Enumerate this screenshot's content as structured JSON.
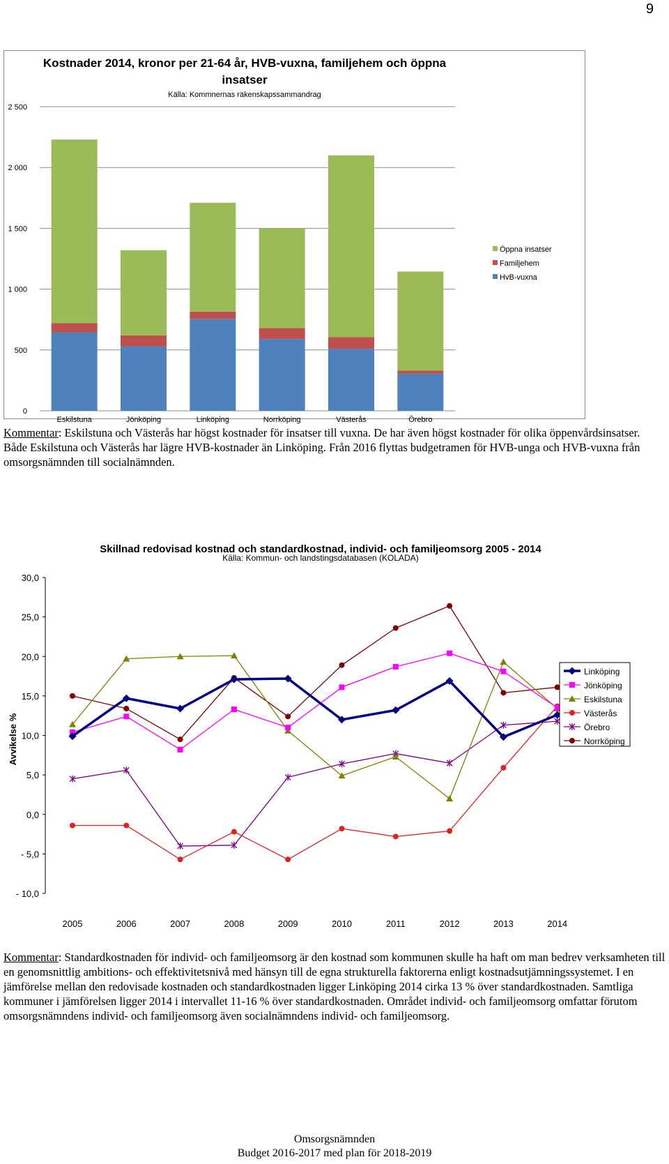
{
  "page_number": "9",
  "chart_data": [
    {
      "type": "bar",
      "stacked": true,
      "title": "Kostnader 2014, kronor per 21-64 år, HVB-vuxna, familjehem och öppna insatser",
      "title_line1": "Kostnader 2014, kronor per 21-64 år, HVB-vuxna, familjehem och öppna",
      "title_line2": "insatser",
      "subtitle": "Källa: Kommnernas räkenskapssammandrag",
      "categories": [
        "Eskilstuna",
        "Jönköping",
        "Linköping",
        "Norrköping",
        "Västerås",
        "Örebro"
      ],
      "series": [
        {
          "name": "HvB-vuxna",
          "color": "#4f81bd",
          "values": [
            645,
            530,
            755,
            590,
            510,
            305
          ]
        },
        {
          "name": "Familjehem",
          "color": "#c0504d",
          "values": [
            75,
            90,
            60,
            90,
            95,
            25
          ]
        },
        {
          "name": "Öppna insatser",
          "color": "#9bbb59",
          "values": [
            1510,
            700,
            895,
            820,
            1495,
            815
          ]
        }
      ],
      "legend_order": [
        "Öppna insatser",
        "Familjehem",
        "HvB-vuxna"
      ],
      "legend_position": "right",
      "ylim": [
        0,
        2500
      ],
      "yticks": [
        0,
        500,
        1000,
        1500,
        2000,
        2500
      ],
      "ytick_labels": [
        "0",
        "500",
        "1 000",
        "1 500",
        "2 000",
        "2 500"
      ],
      "grid": true
    },
    {
      "type": "line",
      "title": "Skillnad redovisad kostnad och standardkostnad, individ- och familjeomsorg 2005 - 2014",
      "subtitle": "Källa: Kommun- och landstingsdatabasen (KOLADA)",
      "ylabel": "Avvikelse %",
      "x": [
        "2005",
        "2006",
        "2007",
        "2008",
        "2009",
        "2010",
        "2011",
        "2012",
        "2013",
        "2014"
      ],
      "ylim": [
        -10,
        30
      ],
      "yticks": [
        30,
        25,
        20,
        15,
        10,
        5,
        0,
        -5,
        -10
      ],
      "ytick_labels": [
        "30,0",
        "25,0",
        "20,0",
        "15,0",
        "10,0",
        "5,0",
        "0,0",
        "- 5,0",
        "- 10,0"
      ],
      "legend_position": "right",
      "grid": false,
      "series": [
        {
          "name": "Linköping",
          "color": "#000080",
          "marker": "diamond",
          "width": 3.5,
          "values": [
            9.9,
            14.7,
            13.4,
            17.1,
            17.2,
            12.0,
            13.2,
            16.9,
            9.8,
            12.6
          ]
        },
        {
          "name": "Jönköping",
          "color": "#ff00ff",
          "marker": "square",
          "width": 1.3,
          "values": [
            10.4,
            12.4,
            8.2,
            13.3,
            11.0,
            16.1,
            18.7,
            20.4,
            18.1,
            13.5
          ]
        },
        {
          "name": "Eskilstuna",
          "color": "#808000",
          "marker": "triangle",
          "width": 1.3,
          "values": [
            11.4,
            19.7,
            20.0,
            20.1,
            10.6,
            4.9,
            7.3,
            2.0,
            19.3,
            13.4
          ]
        },
        {
          "name": "Västerås",
          "color": "#dd2222",
          "marker": "circle",
          "width": 1.3,
          "values": [
            -1.4,
            -1.4,
            -5.7,
            -2.2,
            -5.7,
            -1.8,
            -2.8,
            -2.1,
            5.9,
            13.7
          ]
        },
        {
          "name": "Örebro",
          "color": "#800080",
          "marker": "star",
          "width": 1.3,
          "values": [
            4.5,
            5.6,
            -4.0,
            -3.9,
            4.7,
            6.4,
            7.7,
            6.5,
            11.3,
            11.8
          ]
        },
        {
          "name": "Norrköping",
          "color": "#800000",
          "marker": "circle",
          "width": 1.3,
          "values": [
            15.0,
            13.4,
            9.5,
            17.3,
            12.4,
            18.9,
            23.6,
            26.4,
            15.4,
            16.1
          ]
        }
      ]
    }
  ],
  "comment1": {
    "label": "Kommentar",
    "text": ": Eskilstuna och Västerås har högst kostnader för insatser till vuxna. De har även högst kostnader för olika öppenvårdsinsatser. Både Eskilstuna och Västerås har lägre HVB-kostnader än Linköping. Från 2016 flyttas budgetramen för HVB-unga och HVB-vuxna från omsorgsnämnden till socialnämnden."
  },
  "comment2": {
    "label": "Kommentar",
    "text": ": Standardkostnaden för individ- och familjeomsorg är den kostnad som kommunen skulle ha haft om man bedrev verksamheten till en genomsnittlig ambitions- och effektivitetsnivå med hänsyn till de egna strukturella faktorerna enligt kostnadsutjämningssystemet. I en jämförelse mellan den redovisade kostnaden och standardkostnaden ligger Linköping 2014 cirka 13 % över standardkostnaden. Samtliga kommuner i jämförelsen ligger 2014 i intervallet 11-16 % över standardkostnaden. Området individ- och familjeomsorg omfattar förutom omsorgsnämndens individ- och familjeomsorg även socialnämndens individ- och familjeomsorg."
  },
  "footer": {
    "line1": "Omsorgsnämnden",
    "line2": "Budget 2016-2017 med plan för 2018-2019"
  }
}
